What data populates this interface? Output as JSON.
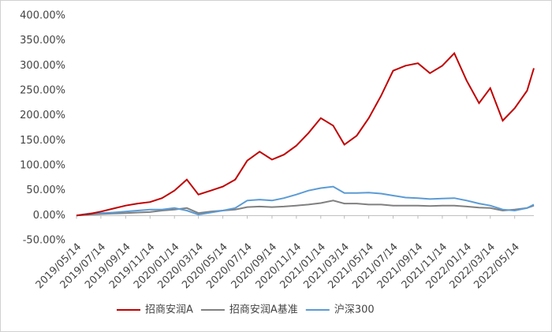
{
  "chart_data": {
    "type": "line",
    "x": [
      "2019/05/14",
      "2019/06/14",
      "2019/07/14",
      "2019/08/14",
      "2019/09/14",
      "2019/10/14",
      "2019/11/14",
      "2019/12/14",
      "2020/01/14",
      "2020/02/14",
      "2020/03/14",
      "2020/04/14",
      "2020/05/14",
      "2020/06/14",
      "2020/07/14",
      "2020/08/14",
      "2020/09/14",
      "2020/10/14",
      "2020/11/14",
      "2020/12/14",
      "2021/01/14",
      "2021/02/14",
      "2021/03/14",
      "2021/04/14",
      "2021/05/14",
      "2021/06/14",
      "2021/07/14",
      "2021/08/14",
      "2021/09/14",
      "2021/10/14",
      "2021/11/14",
      "2021/12/14",
      "2022/01/14",
      "2022/02/14",
      "2022/03/14",
      "2022/04/14",
      "2022/05/14",
      "2022/06/14",
      "2022/07/01"
    ],
    "series": [
      {
        "name": "招商安润A",
        "color": "#c00000",
        "values": [
          0,
          3,
          8,
          14,
          20,
          24,
          27,
          35,
          50,
          72,
          42,
          50,
          58,
          72,
          110,
          128,
          112,
          122,
          140,
          165,
          195,
          180,
          142,
          160,
          195,
          240,
          290,
          300,
          305,
          285,
          300,
          325,
          270,
          225,
          255,
          190,
          215,
          250,
          295
        ]
      },
      {
        "name": "招商安润A基准",
        "color": "#808080",
        "values": [
          0,
          2,
          3,
          4,
          5,
          6,
          7,
          10,
          12,
          15,
          5,
          8,
          10,
          12,
          17,
          18,
          17,
          18,
          20,
          22,
          25,
          30,
          24,
          24,
          22,
          22,
          20,
          20,
          20,
          19,
          20,
          20,
          18,
          16,
          15,
          10,
          12,
          15,
          20
        ]
      },
      {
        "name": "沪深300",
        "color": "#5b9bd5",
        "values": [
          0,
          4,
          5,
          6,
          8,
          10,
          12,
          12,
          15,
          10,
          2,
          6,
          10,
          15,
          30,
          32,
          30,
          35,
          42,
          50,
          55,
          58,
          45,
          45,
          46,
          44,
          40,
          36,
          35,
          33,
          34,
          35,
          30,
          24,
          20,
          12,
          10,
          15,
          22
        ]
      }
    ],
    "xlim": [
      "2019/05/14",
      "2022/07/01"
    ],
    "xticks": [
      "2019/05/14",
      "2019/07/14",
      "2019/09/14",
      "2019/11/14",
      "2020/01/14",
      "2020/03/14",
      "2020/05/14",
      "2020/07/14",
      "2020/09/14",
      "2020/11/14",
      "2021/01/14",
      "2021/03/14",
      "2021/05/14",
      "2021/07/14",
      "2021/09/14",
      "2021/11/14",
      "2022/01/14",
      "2022/03/14",
      "2022/05/14"
    ],
    "ylim": [
      -50,
      400
    ],
    "yticks": [
      {
        "value": -50,
        "label": "-50.00%"
      },
      {
        "value": 0,
        "label": "0.00%"
      },
      {
        "value": 50,
        "label": "50.00%"
      },
      {
        "value": 100,
        "label": "100.00%"
      },
      {
        "value": 150,
        "label": "150.00%"
      },
      {
        "value": 200,
        "label": "200.00%"
      },
      {
        "value": 250,
        "label": "250.00%"
      },
      {
        "value": 300,
        "label": "300.00%"
      },
      {
        "value": 350,
        "label": "350.00%"
      },
      {
        "value": 400,
        "label": "400.00%"
      }
    ],
    "grid": false,
    "legend": "bottom"
  }
}
